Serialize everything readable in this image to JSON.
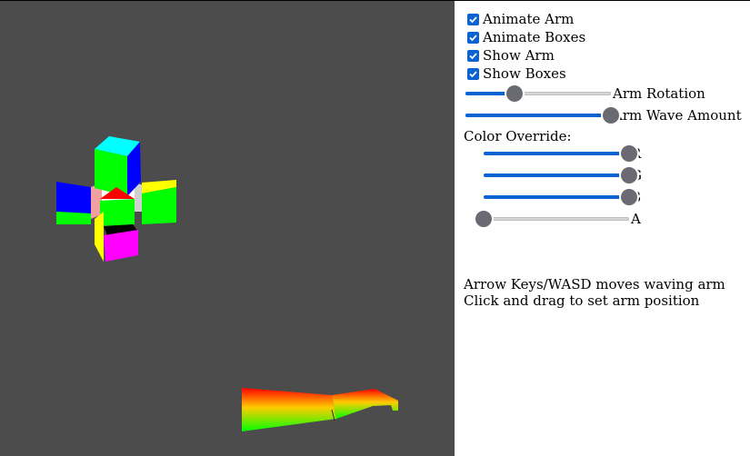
{
  "controls": {
    "checkboxes": [
      {
        "label": "Animate Arm",
        "checked": true
      },
      {
        "label": "Animate Boxes",
        "checked": true
      },
      {
        "label": "Show Arm",
        "checked": true
      },
      {
        "label": "Show Boxes",
        "checked": true
      }
    ],
    "sliders": [
      {
        "label": "Arm Rotation",
        "value": 0.34
      },
      {
        "label": "Arm Wave Amount",
        "value": 1.0
      }
    ],
    "color_override": {
      "label": "Color Override:",
      "channels": [
        {
          "label": "R",
          "value": 1.0
        },
        {
          "label": "G",
          "value": 1.0
        },
        {
          "label": "B",
          "value": 1.0
        },
        {
          "label": "A",
          "value": 0.0
        }
      ]
    }
  },
  "instructions": {
    "line1": "Arrow Keys/WASD moves waving arm",
    "line2": "Click and drag to set arm position"
  },
  "colors": {
    "viewport_bg": "#4c4c4c",
    "accent": "#0b63d1",
    "thumb": "#6a6a72"
  }
}
